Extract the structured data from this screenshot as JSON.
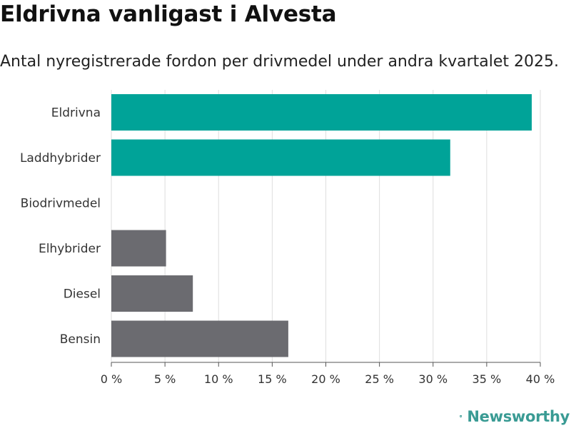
{
  "header": {
    "title": "Eldrivna vanligast i Alvesta",
    "subtitle": "Antal nyregistrerade fordon per drivmedel under andra kvartalet 2025."
  },
  "brand": {
    "name": "Newsworthy",
    "icon": "newsworthy-logo-icon",
    "color": "#3a9b94"
  },
  "chart_data": {
    "type": "bar",
    "orientation": "horizontal",
    "categories": [
      "Eldrivna",
      "Laddhybrider",
      "Biodrivmedel",
      "Elhybrider",
      "Diesel",
      "Bensin"
    ],
    "values": [
      39.2,
      31.6,
      0,
      5.1,
      7.6,
      16.5
    ],
    "colors": [
      "#00a398",
      "#00a398",
      "#00a398",
      "#6b6b70",
      "#6b6b70",
      "#6b6b70"
    ],
    "xlim": [
      0,
      40
    ],
    "xticks": [
      0,
      5,
      10,
      15,
      20,
      25,
      30,
      35,
      40
    ],
    "xtick_labels": [
      "0 %",
      "5 %",
      "10 %",
      "15 %",
      "20 %",
      "25 %",
      "30 %",
      "35 %",
      "40 %"
    ],
    "grid": true,
    "legend": "none"
  }
}
